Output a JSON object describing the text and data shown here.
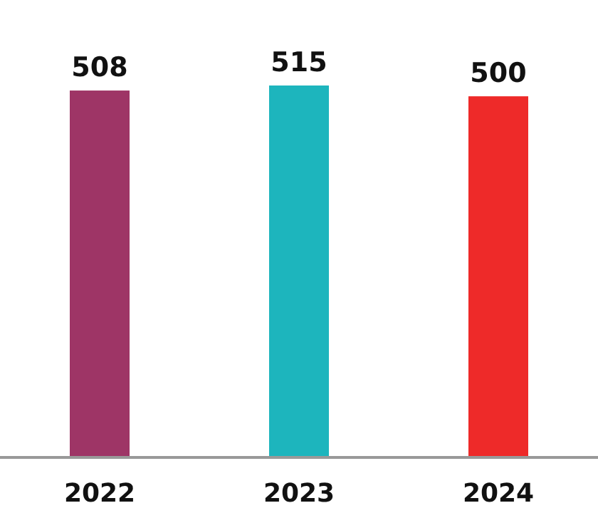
{
  "chart_data": {
    "type": "bar",
    "categories": [
      "2022",
      "2023",
      "2024"
    ],
    "values": [
      508,
      515,
      500
    ],
    "colors": [
      "#9e3566",
      "#1db5bd",
      "#ee2a29"
    ],
    "data_labels": true
  }
}
